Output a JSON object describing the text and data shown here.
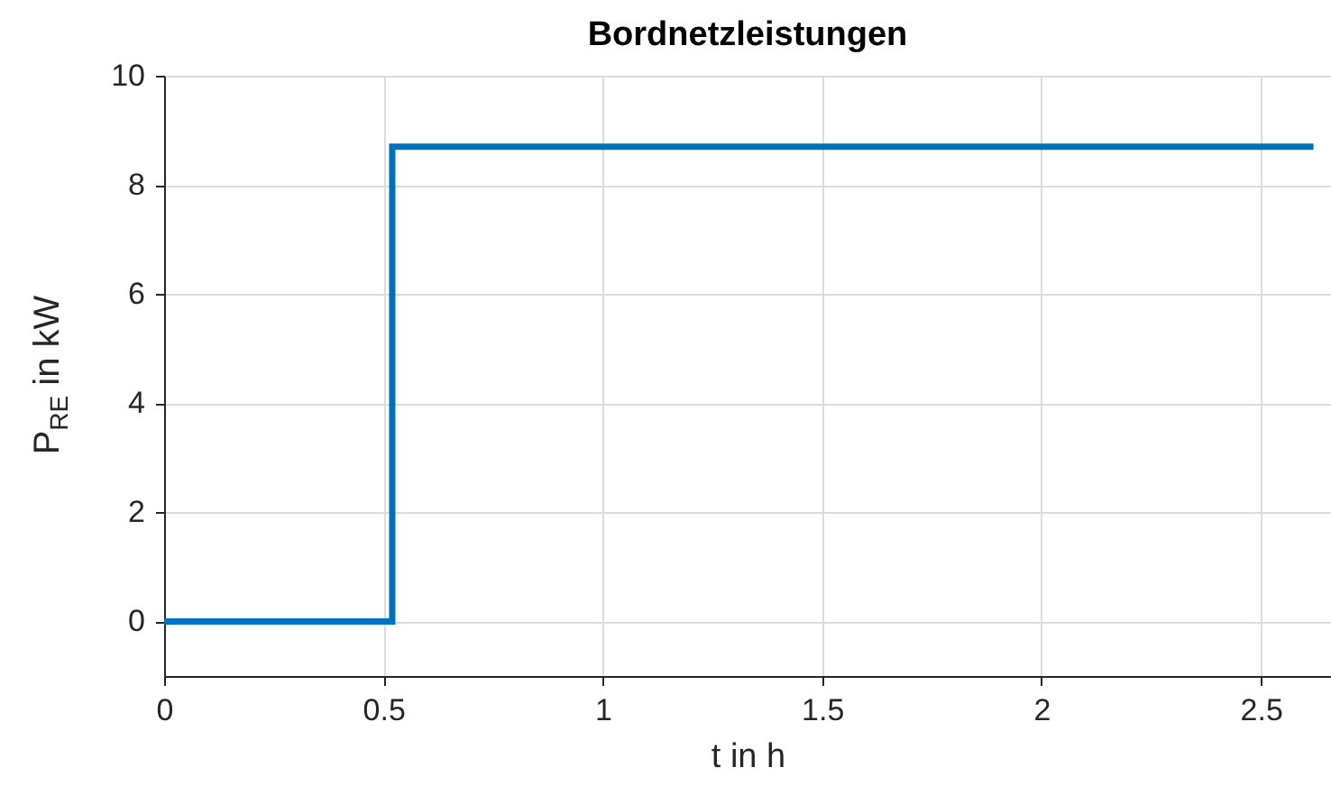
{
  "chart_data": {
    "type": "step",
    "title": "Bordnetzleistungen",
    "xlabel": "t in h",
    "ylabel": "P$_{RE}$ in kW",
    "x": [
      0,
      0.52,
      2.62
    ],
    "series": [
      {
        "color": "#0072bd",
        "values": [
          0,
          8.7,
          8.7
        ]
      }
    ],
    "xlim": [
      0,
      2.66
    ],
    "ylim": [
      -1,
      10
    ],
    "xticks": [
      0,
      0.5,
      1,
      1.5,
      2,
      2.5
    ],
    "yticks": [
      0,
      2,
      4,
      6,
      8,
      10
    ],
    "grid": true,
    "line_style": "solid"
  }
}
